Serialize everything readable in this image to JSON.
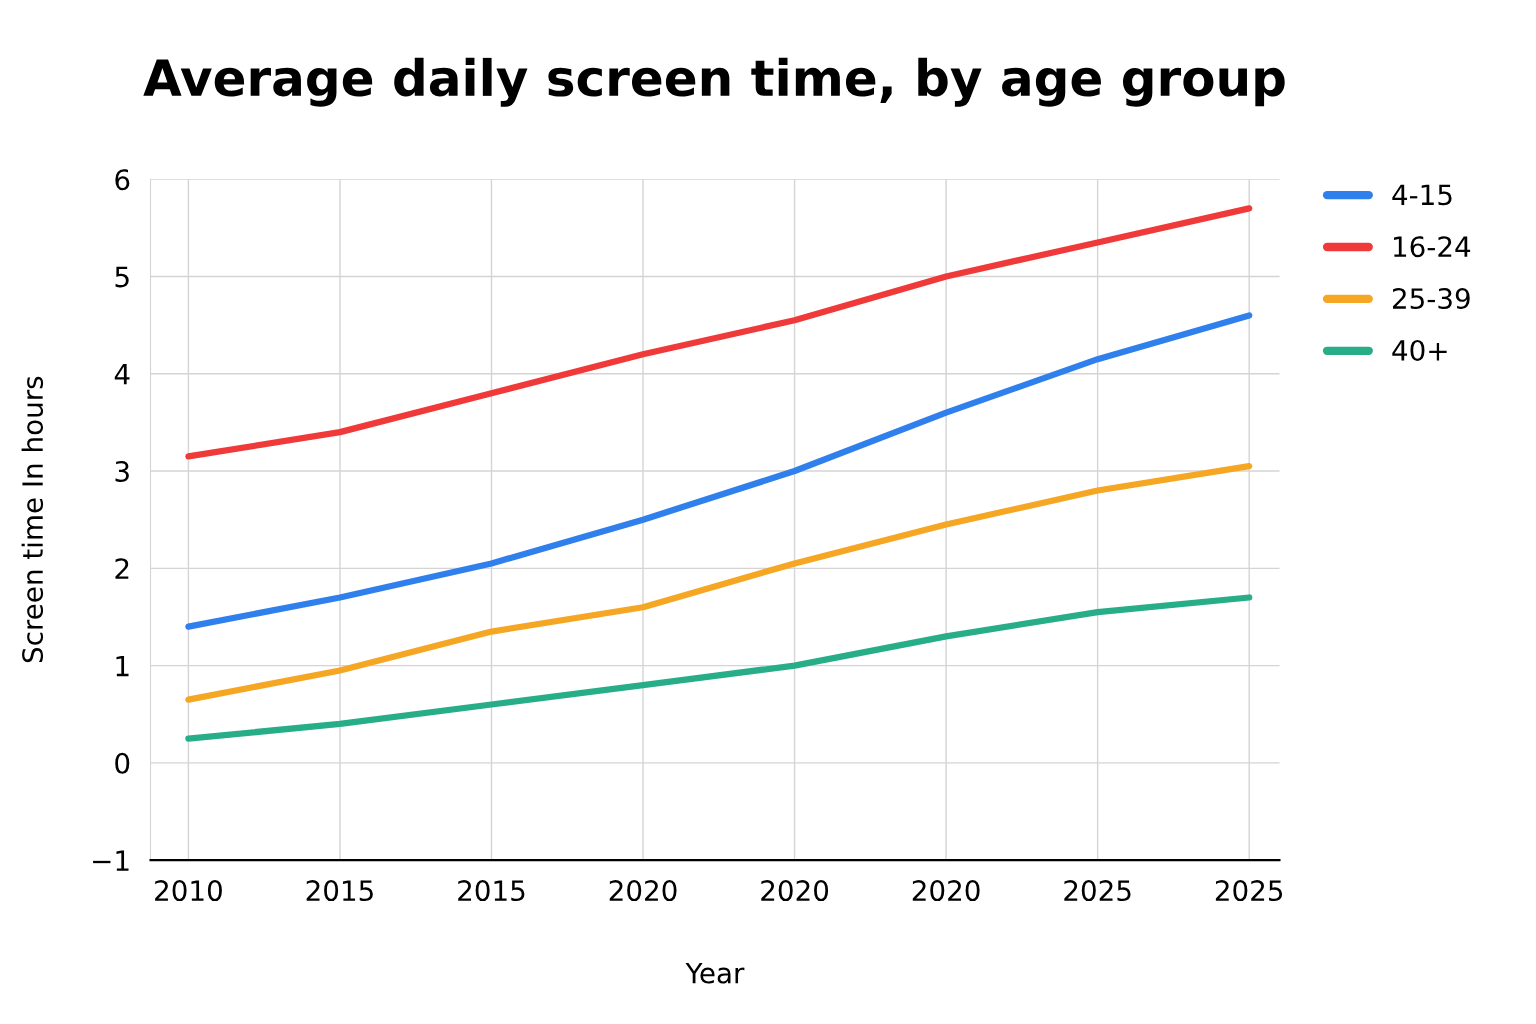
{
  "chart_data": {
    "type": "line",
    "title": "Average daily screen time, by age group",
    "xlabel": "Year",
    "ylabel": "Screen time In hours",
    "categories": [
      "2010",
      "2015",
      "2015",
      "2020",
      "2020",
      "2020",
      "2025",
      "2025"
    ],
    "series": [
      {
        "name": "4-15",
        "color": "#2f80ed",
        "values": [
          1.4,
          1.7,
          2.05,
          2.5,
          3.0,
          3.6,
          4.15,
          4.6
        ]
      },
      {
        "name": "16-24",
        "color": "#f03a3a",
        "values": [
          3.15,
          3.4,
          3.8,
          4.2,
          4.55,
          5.0,
          5.35,
          5.7
        ]
      },
      {
        "name": "25-39",
        "color": "#f5a623",
        "values": [
          0.65,
          0.95,
          1.35,
          1.6,
          2.05,
          2.45,
          2.8,
          3.05
        ]
      },
      {
        "name": "40+",
        "color": "#27ae88",
        "values": [
          0.25,
          0.4,
          0.6,
          0.8,
          1.0,
          1.3,
          1.55,
          1.7
        ]
      }
    ],
    "ylim": [
      -1,
      6
    ],
    "yticks": [
      {
        "value": -1,
        "label": "−1"
      },
      0,
      1,
      2,
      3,
      4,
      5,
      6
    ],
    "grid": true,
    "legend": "top right",
    "line_style": "solid",
    "marker": "none"
  }
}
